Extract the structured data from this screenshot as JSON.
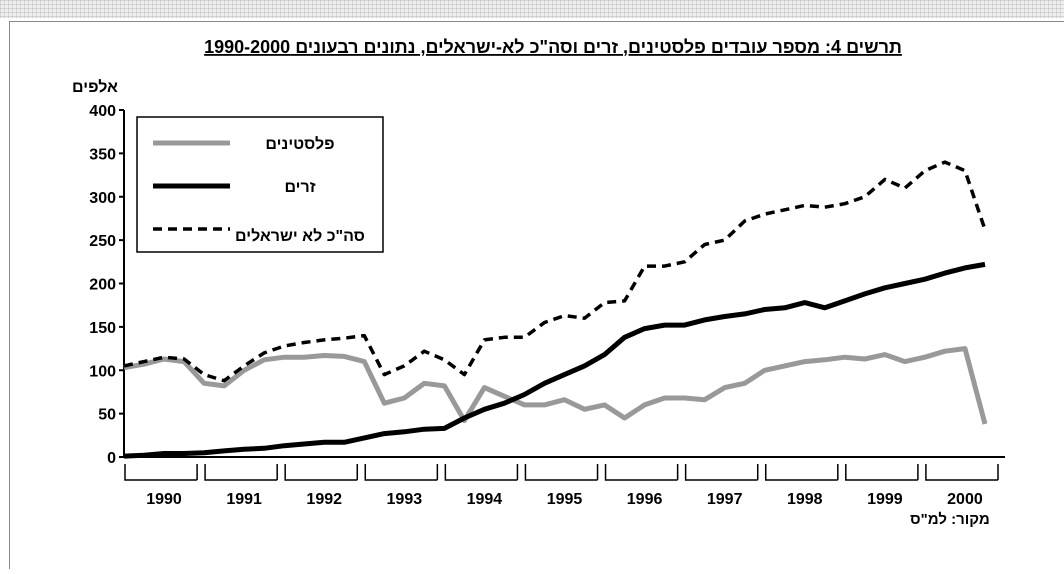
{
  "chart_data": {
    "type": "line",
    "title": "תרשים 4: מספר עובדים פלסטינים, זרים וסה\"כ לא-ישראלים, נתונים רבעונים 1990-2000",
    "y_label": "אלפים",
    "source": "מקור: למ\"ס",
    "years": [
      1990,
      1991,
      1992,
      1993,
      1994,
      1995,
      1996,
      1997,
      1998,
      1999,
      2000
    ],
    "ylim": [
      0,
      400
    ],
    "yticks": [
      0,
      50,
      100,
      150,
      200,
      250,
      300,
      350,
      400
    ],
    "legend": "top-left",
    "series": [
      {
        "name": "פלסטינים",
        "color": "#999999",
        "dash": false,
        "values": [
          103,
          107,
          113,
          110,
          85,
          82,
          100,
          112,
          115,
          115,
          117,
          116,
          110,
          62,
          68,
          85,
          82,
          42,
          80,
          70,
          60,
          60,
          66,
          55,
          60,
          45,
          60,
          68,
          68,
          66,
          80,
          85,
          100,
          105,
          110,
          112,
          115,
          113,
          118,
          110,
          115,
          122,
          125,
          38
        ]
      },
      {
        "name": "זרים",
        "color": "#000000",
        "dash": false,
        "values": [
          1,
          2,
          4,
          4,
          5,
          7,
          9,
          10,
          13,
          15,
          17,
          17,
          22,
          27,
          29,
          32,
          33,
          45,
          55,
          62,
          72,
          85,
          95,
          105,
          118,
          138,
          148,
          152,
          152,
          158,
          162,
          165,
          170,
          172,
          178,
          172,
          180,
          188,
          195,
          200,
          205,
          212,
          218,
          222
        ]
      },
      {
        "name": "סה\"כ לא ישראלים",
        "color": "#000000",
        "dash": true,
        "values": [
          105,
          110,
          115,
          113,
          95,
          88,
          105,
          120,
          128,
          132,
          135,
          137,
          140,
          95,
          105,
          122,
          112,
          95,
          135,
          138,
          138,
          155,
          163,
          160,
          178,
          180,
          220,
          220,
          225,
          245,
          250,
          272,
          280,
          285,
          290,
          288,
          292,
          300,
          320,
          310,
          330,
          340,
          330,
          262
        ]
      }
    ]
  }
}
